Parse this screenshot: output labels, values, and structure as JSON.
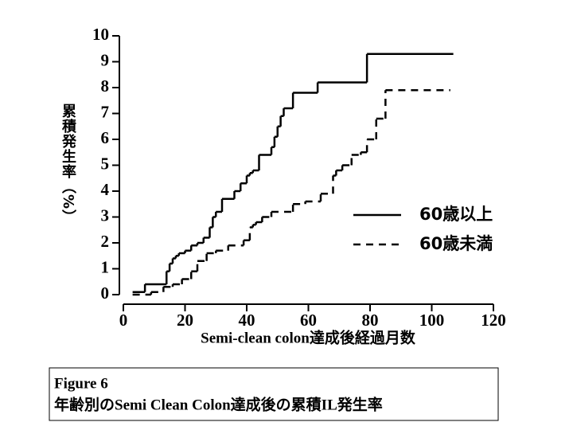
{
  "chart_data": {
    "type": "line",
    "step": true,
    "figure_label": "Figure 6",
    "caption": "年齢別のSemi Clean Colon達成後の累積IL発生率",
    "xlabel": "Semi-clean colon達成後経過月数",
    "ylabel": "累積発生率（%）",
    "xlim": [
      0,
      120
    ],
    "xticks": [
      0,
      20,
      40,
      60,
      80,
      100,
      120
    ],
    "ylim": [
      0,
      10
    ],
    "yticks": [
      0,
      1,
      2,
      3,
      4,
      5,
      6,
      7,
      8,
      9,
      10
    ],
    "legend": "right",
    "series": [
      {
        "name": "60歳以上",
        "color": "#000000",
        "dash": false,
        "x": [
          3,
          7,
          14,
          15,
          16,
          17,
          18,
          20,
          22,
          24,
          26,
          28,
          29,
          30,
          32,
          36,
          38,
          40,
          41,
          42,
          44,
          48,
          49,
          50,
          51,
          52,
          55,
          63,
          79,
          107
        ],
        "values": [
          0.1,
          0.4,
          0.9,
          1.2,
          1.4,
          1.5,
          1.6,
          1.7,
          1.9,
          2.0,
          2.2,
          2.6,
          3.0,
          3.2,
          3.7,
          4.0,
          4.3,
          4.6,
          4.7,
          4.8,
          5.4,
          5.7,
          6.1,
          6.5,
          6.9,
          7.2,
          7.8,
          8.2,
          9.3,
          9.3
        ]
      },
      {
        "name": "60歳未満",
        "color": "#000000",
        "dash": true,
        "x": [
          3,
          9,
          13,
          16,
          19,
          22,
          24,
          27,
          30,
          34,
          39,
          41,
          42,
          43,
          45,
          48,
          55,
          59,
          64,
          68,
          69,
          71,
          74,
          77,
          79,
          82,
          85,
          106
        ],
        "values": [
          0.0,
          0.1,
          0.3,
          0.4,
          0.6,
          0.9,
          1.3,
          1.6,
          1.7,
          1.9,
          2.1,
          2.6,
          2.7,
          2.8,
          3.0,
          3.2,
          3.5,
          3.6,
          3.9,
          4.6,
          4.8,
          5.0,
          5.4,
          5.5,
          6.0,
          6.8,
          7.9,
          7.9
        ]
      }
    ]
  }
}
